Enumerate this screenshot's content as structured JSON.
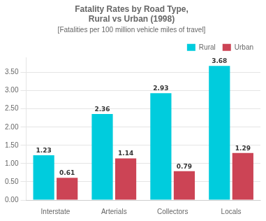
{
  "chart_data": {
    "type": "bar",
    "title": [
      "Fatality Rates by Road Type,",
      "Rural vs Urban (1998)"
    ],
    "subtitle": "[Fatalities per 100 million vehicle miles of travel]",
    "categories": [
      "Interstate",
      "Arterials",
      "Collectors",
      "Locals"
    ],
    "series": [
      {
        "name": "Rural",
        "color": "#00CCDD",
        "values": [
          1.23,
          2.36,
          2.93,
          3.68
        ]
      },
      {
        "name": "Urban",
        "color": "#CC4455",
        "values": [
          0.61,
          1.14,
          0.79,
          1.29
        ]
      }
    ],
    "ylim": [
      0,
      3.9
    ],
    "yticks": [
      {
        "value": 0.0,
        "label": "0.00"
      },
      {
        "value": 0.5,
        "label": "0.50"
      },
      {
        "value": 1.0,
        "label": "1.00"
      },
      {
        "value": 1.5,
        "label": "1.50"
      },
      {
        "value": 2.0,
        "label": "2.00"
      },
      {
        "value": 2.5,
        "label": "2.50"
      },
      {
        "value": 3.0,
        "label": "3.00"
      },
      {
        "value": 3.5,
        "label": "3.50"
      }
    ],
    "grid": true,
    "legend": "upper right",
    "data_labels": true
  }
}
